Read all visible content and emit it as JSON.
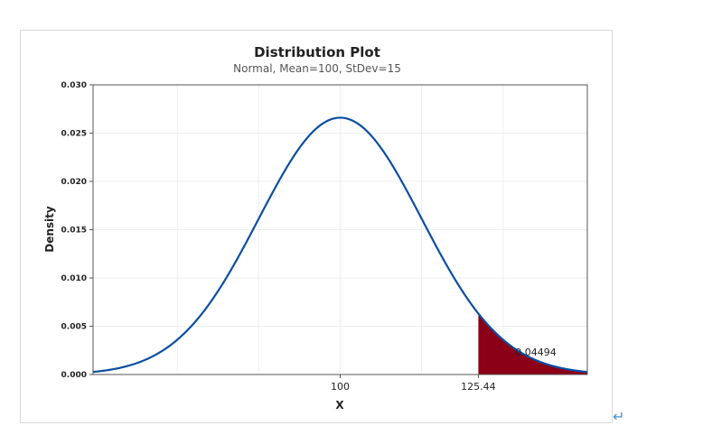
{
  "chart_data": {
    "type": "area",
    "title": "Distribution Plot",
    "subtitle": "Normal, Mean=100, StDev=15",
    "xlabel": "X",
    "ylabel": "Density",
    "distribution": {
      "family": "Normal",
      "mean": 100,
      "stdev": 15
    },
    "xlim": [
      54.5,
      145.5
    ],
    "ylim": [
      0,
      0.03
    ],
    "yticks": [
      "0.000",
      "0.005",
      "0.010",
      "0.015",
      "0.020",
      "0.025",
      "0.030"
    ],
    "ytick_values": [
      0,
      0.005,
      0.01,
      0.015,
      0.02,
      0.025,
      0.03
    ],
    "xticks": [
      {
        "value": 100,
        "label": "100"
      },
      {
        "value": 125.44,
        "label": "125.44"
      }
    ],
    "shaded_region": {
      "from": 125.44,
      "to": 145.5,
      "probability_label": "0.04494"
    },
    "grid": true,
    "colors": {
      "curve": "#0b4ea2",
      "shade": "#8b0016",
      "grid": "#eeeeee",
      "axis": "#555555"
    }
  },
  "decorations": {
    "return_mark": "↵"
  }
}
